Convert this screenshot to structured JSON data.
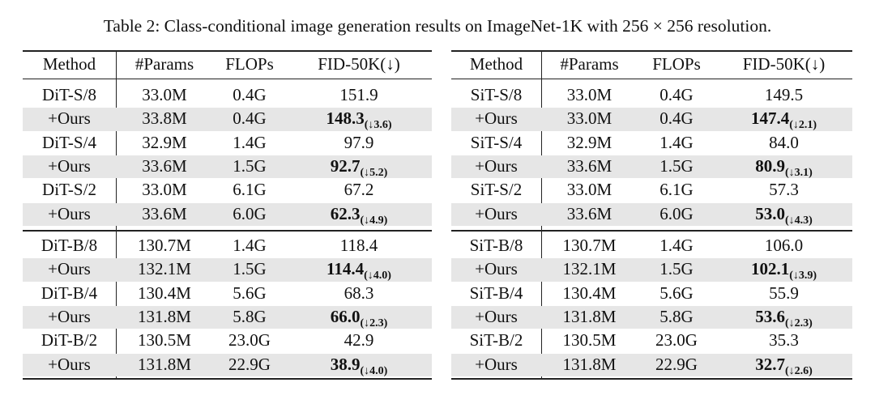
{
  "caption": "Table 2: Class-conditional image generation results on ImageNet-1K with 256 × 256 resolution.",
  "tables": [
    {
      "header": [
        "Method",
        "#Params",
        "FLOPs",
        "FID-50K(↓)"
      ],
      "groups": [
        {
          "rows": [
            {
              "cells": [
                "DiT-S/8",
                "33.0M",
                "0.4G",
                "151.9"
              ]
            },
            {
              "cells": [
                "+Ours",
                "33.8M",
                "0.4G",
                "148.3"
              ],
              "delta": "(↓3.6)"
            },
            {
              "cells": [
                "DiT-S/4",
                "32.9M",
                "1.4G",
                "97.9"
              ]
            },
            {
              "cells": [
                "+Ours",
                "33.6M",
                "1.5G",
                "92.7"
              ],
              "delta": "(↓5.2)"
            },
            {
              "cells": [
                "DiT-S/2",
                "33.0M",
                "6.1G",
                "67.2"
              ]
            },
            {
              "cells": [
                "+Ours",
                "33.6M",
                "6.0G",
                "62.3"
              ],
              "delta": "(↓4.9)"
            }
          ]
        },
        {
          "rows": [
            {
              "cells": [
                "DiT-B/8",
                "130.7M",
                "1.4G",
                "118.4"
              ]
            },
            {
              "cells": [
                "+Ours",
                "132.1M",
                "1.5G",
                "114.4"
              ],
              "delta": "(↓4.0)"
            },
            {
              "cells": [
                "DiT-B/4",
                "130.4M",
                "5.6G",
                "68.3"
              ]
            },
            {
              "cells": [
                "+Ours",
                "131.8M",
                "5.8G",
                "66.0"
              ],
              "delta": "(↓2.3)"
            },
            {
              "cells": [
                "DiT-B/2",
                "130.5M",
                "23.0G",
                "42.9"
              ]
            },
            {
              "cells": [
                "+Ours",
                "131.8M",
                "22.9G",
                "38.9"
              ],
              "delta": "(↓4.0)"
            }
          ]
        }
      ]
    },
    {
      "header": [
        "Method",
        "#Params",
        "FLOPs",
        "FID-50K(↓)"
      ],
      "groups": [
        {
          "rows": [
            {
              "cells": [
                "SiT-S/8",
                "33.0M",
                "0.4G",
                "149.5"
              ]
            },
            {
              "cells": [
                "+Ours",
                "33.0M",
                "0.4G",
                "147.4"
              ],
              "delta": "(↓2.1)"
            },
            {
              "cells": [
                "SiT-S/4",
                "32.9M",
                "1.4G",
                "84.0"
              ]
            },
            {
              "cells": [
                "+Ours",
                "33.6M",
                "1.5G",
                "80.9"
              ],
              "delta": "(↓3.1)"
            },
            {
              "cells": [
                "SiT-S/2",
                "33.0M",
                "6.1G",
                "57.3"
              ]
            },
            {
              "cells": [
                "+Ours",
                "33.6M",
                "6.0G",
                "53.0"
              ],
              "delta": "(↓4.3)"
            }
          ]
        },
        {
          "rows": [
            {
              "cells": [
                "SiT-B/8",
                "130.7M",
                "1.4G",
                "106.0"
              ]
            },
            {
              "cells": [
                "+Ours",
                "132.1M",
                "1.5G",
                "102.1"
              ],
              "delta": "(↓3.9)"
            },
            {
              "cells": [
                "SiT-B/4",
                "130.4M",
                "5.6G",
                "55.9"
              ]
            },
            {
              "cells": [
                "+Ours",
                "131.8M",
                "5.8G",
                "53.6"
              ],
              "delta": "(↓2.3)"
            },
            {
              "cells": [
                "SiT-B/2",
                "130.5M",
                "23.0G",
                "35.3"
              ]
            },
            {
              "cells": [
                "+Ours",
                "131.8M",
                "22.9G",
                "32.7"
              ],
              "delta": "(↓2.6)"
            }
          ]
        }
      ]
    }
  ]
}
